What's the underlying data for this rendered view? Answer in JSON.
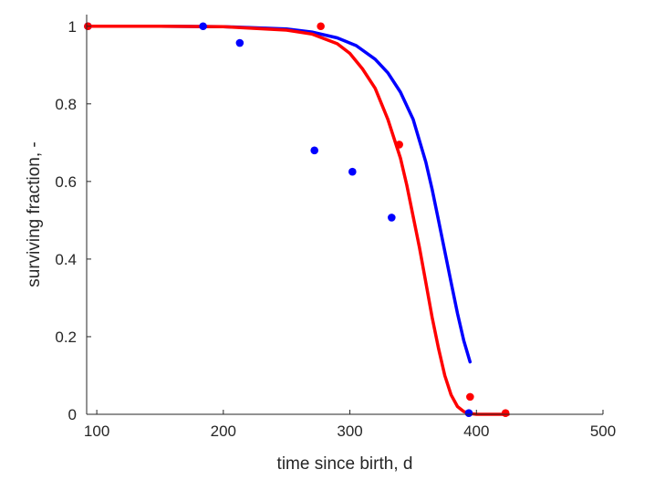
{
  "chart_data": {
    "type": "scatter",
    "title": "",
    "xlabel": "time since birth, d",
    "ylabel": "surviving fraction, -",
    "xlim": [
      92,
      500
    ],
    "ylim": [
      0,
      1.03
    ],
    "xticks": [
      100,
      200,
      300,
      400,
      500
    ],
    "yticks": [
      0,
      0.2,
      0.4,
      0.6,
      0.8,
      1
    ],
    "xtick_labels": [
      "100",
      "200",
      "300",
      "400",
      "500"
    ],
    "ytick_labels": [
      "0",
      "0.2",
      "0.4",
      "0.6",
      "0.8",
      "1"
    ],
    "grid": false,
    "legend": "none",
    "series": [
      {
        "kind": "points",
        "color": "#0000ff",
        "x": [
          93,
          184,
          213,
          272,
          302,
          333,
          394
        ],
        "y": [
          1.0,
          1.0,
          0.957,
          0.68,
          0.625,
          0.507,
          0.003
        ]
      },
      {
        "kind": "points",
        "color": "#ff0000",
        "x": [
          93,
          277,
          339,
          395,
          423
        ],
        "y": [
          1.0,
          1.0,
          0.695,
          0.045,
          0.003
        ]
      },
      {
        "kind": "line",
        "color": "#0000ff",
        "x": [
          93,
          150,
          200,
          250,
          270,
          290,
          305,
          320,
          330,
          340,
          350,
          360,
          365,
          370,
          375,
          380,
          385,
          390,
          395
        ],
        "y": [
          1.0,
          1.0,
          0.999,
          0.993,
          0.985,
          0.97,
          0.95,
          0.915,
          0.88,
          0.83,
          0.76,
          0.65,
          0.58,
          0.5,
          0.42,
          0.34,
          0.26,
          0.19,
          0.135
        ]
      },
      {
        "kind": "line",
        "color": "#ff0000",
        "x": [
          93,
          150,
          200,
          250,
          270,
          290,
          300,
          310,
          320,
          330,
          340,
          345,
          350,
          355,
          360,
          365,
          370,
          375,
          380,
          385,
          390,
          395,
          400,
          410,
          425
        ],
        "y": [
          1.0,
          1.0,
          0.999,
          0.99,
          0.98,
          0.955,
          0.93,
          0.89,
          0.84,
          0.76,
          0.66,
          0.59,
          0.51,
          0.43,
          0.34,
          0.25,
          0.17,
          0.1,
          0.05,
          0.02,
          0.007,
          0.002,
          0.0,
          0.0,
          0.0
        ]
      }
    ]
  }
}
